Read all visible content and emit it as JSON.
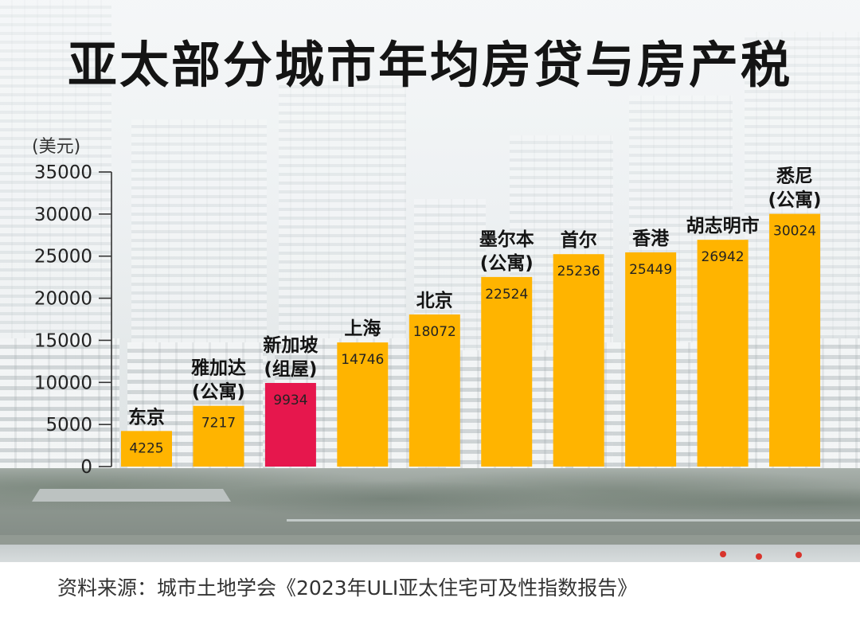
{
  "chart_data": {
    "type": "bar",
    "title": "亚太部分城市年均房贷与房产税",
    "xlabel": "",
    "ylabel": "(美元)",
    "categories": [
      "东京",
      "雅加达(公寓)",
      "新加坡(组屋)",
      "上海",
      "北京",
      "墨尔本(公寓)",
      "首尔",
      "香港",
      "胡志明市",
      "悉尼(公寓)"
    ],
    "values": [
      4225,
      7217,
      9934,
      14746,
      18072,
      22524,
      25236,
      25449,
      26942,
      30024
    ],
    "ylim": [
      0,
      35000
    ],
    "yticks": [
      0,
      5000,
      10000,
      15000,
      20000,
      25000,
      30000,
      35000
    ],
    "grid": false,
    "legend": false,
    "data_labels": true,
    "bar_colors": [
      "#FFB400",
      "#FFB400",
      "#E6174D",
      "#FFB400",
      "#FFB400",
      "#FFB400",
      "#FFB400",
      "#FFB400",
      "#FFB400",
      "#FFB400"
    ]
  },
  "source": "资料来源：城市土地学会《2023年ULI亚太住宅可及性指数报告》",
  "colors": {
    "title": "#141414",
    "bar": "#FFB400",
    "highlight": "#E6174D",
    "footer_background": "#FFFFFF"
  }
}
